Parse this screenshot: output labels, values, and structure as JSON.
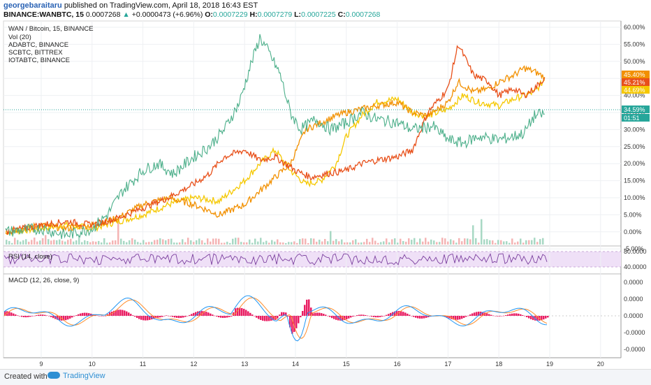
{
  "header": {
    "author": "georgebaraitaru",
    "published": "published on TradingView.com, April 18, 2018 16:43 EST",
    "symbol_line": "BINANCE:WANBTC, 15",
    "price": "0.0007268",
    "arrow": "▲",
    "change": "+0.0000473 (+6.96%)",
    "open_label": "O:",
    "open": "0.0007229",
    "high_label": "H:",
    "high": "0.0007279",
    "low_label": "L:",
    "low": "0.0007225",
    "close_label": "C:",
    "close": "0.0007268"
  },
  "legend": [
    "WAN / Bitcoin, 15, BINANCE",
    "Vol (20)",
    "ADABTC, BINANCE",
    "SCBTC, BITTREX",
    "IOTABTC, BINANCE"
  ],
  "indicators": {
    "rsi": "RSI (14, close)",
    "macd": "MACD (12, 26, close, 9)"
  },
  "footer": {
    "made_with": "Created with",
    "brand": "TradingView"
  },
  "colors": {
    "wan_up": "#4caf8a",
    "wan_down": "#ef8a8a",
    "ada": "#e8501a",
    "sc": "#f29000",
    "iota": "#f5c800",
    "rsi": "#7b3f9e",
    "rsi_band": "#efe0f7",
    "macd": "#2196f3",
    "signal": "#ff8c2a",
    "hist": "#e91e63",
    "current": "#26a69a"
  },
  "chart_data": {
    "type": "line",
    "x_ticks": [
      "9",
      "10",
      "11",
      "12",
      "13",
      "14",
      "15",
      "16",
      "17",
      "18",
      "19",
      "20"
    ],
    "y_ticks": [
      "60.00%",
      "55.00%",
      "50.00%",
      "45.00%",
      "40.00%",
      "35.00%",
      "30.00%",
      "25.00%",
      "20.00%",
      "15.00%",
      "10.00%",
      "5.00%",
      "0.00%",
      "-5.00%"
    ],
    "ylim": [
      -5,
      60
    ],
    "series": [
      {
        "name": "WAN / Bitcoin, 15, BINANCE",
        "x": [
          8.3,
          9,
          9.5,
          10,
          10.3,
          10.6,
          11,
          11.3,
          11.6,
          12,
          12.3,
          12.6,
          12.9,
          13.1,
          13.3,
          13.5,
          13.7,
          13.9,
          14.1,
          14.4,
          14.7,
          15,
          15.3,
          15.6,
          16,
          16.3,
          16.7,
          17,
          17.3,
          17.6,
          18,
          18.3,
          18.5,
          18.7,
          18.9
        ],
        "y": [
          0,
          1,
          -1,
          1,
          5,
          12,
          18,
          20,
          17,
          22,
          25,
          30,
          38,
          48,
          57,
          52,
          46,
          35,
          30,
          33,
          30,
          32,
          35,
          33,
          32,
          30,
          31,
          27,
          26,
          28,
          27,
          28,
          29,
          34,
          34.6
        ]
      },
      {
        "name": "ADABTC, BINANCE",
        "x": [
          8.3,
          9,
          9.5,
          10,
          10.5,
          11,
          11.5,
          12,
          12.3,
          12.6,
          13,
          13.3,
          13.6,
          14,
          14.3,
          14.6,
          15,
          15.3,
          15.6,
          16,
          16.3,
          16.6,
          17,
          17.2,
          17.5,
          17.8,
          18,
          18.3,
          18.5,
          18.7,
          18.9
        ],
        "y": [
          0,
          2,
          3,
          2,
          4,
          7,
          10,
          14,
          17,
          22,
          24,
          21,
          22,
          18,
          16,
          17,
          18,
          20,
          21,
          22,
          24,
          35,
          42,
          55,
          46,
          44,
          40,
          42,
          40,
          42,
          45.2
        ]
      },
      {
        "name": "SCBTC, BITTREX",
        "x": [
          8.3,
          9,
          9.5,
          10,
          10.5,
          11,
          11.5,
          12,
          12.5,
          13,
          13.3,
          13.6,
          13.9,
          14.2,
          14.5,
          14.8,
          15,
          15.3,
          15.6,
          16,
          16.3,
          16.6,
          17,
          17.2,
          17.5,
          17.8,
          18,
          18.3,
          18.5,
          18.7,
          18.9
        ],
        "y": [
          0,
          2,
          1,
          2,
          4,
          8,
          10,
          8,
          5,
          8,
          12,
          16,
          20,
          30,
          32,
          34,
          35,
          36,
          37,
          38,
          35,
          34,
          38,
          44,
          41,
          42,
          44,
          46,
          48,
          47,
          45.4
        ]
      },
      {
        "name": "IOTABTC, BINANCE",
        "x": [
          8.3,
          9,
          9.5,
          10,
          10.5,
          11,
          11.5,
          12,
          12.5,
          13,
          13.3,
          13.6,
          13.9,
          14.2,
          14.5,
          14.8,
          15,
          15.3,
          15.6,
          16,
          16.3,
          16.6,
          17,
          17.3,
          17.6,
          18,
          18.3,
          18.5,
          18.7,
          18.9
        ],
        "y": [
          0,
          1,
          2,
          1,
          3,
          5,
          8,
          10,
          9,
          15,
          20,
          24,
          18,
          14,
          15,
          20,
          28,
          34,
          38,
          39,
          35,
          34,
          36,
          40,
          38,
          37,
          39,
          40,
          41,
          44.7
        ]
      }
    ],
    "price_labels": [
      "45.40%",
      "45.21%",
      "44.69%",
      "34.59%",
      "01:51"
    ],
    "rsi_ticks": [
      "80.0000",
      "40.0000"
    ],
    "macd_ticks": [
      "0.0000",
      "0.0000",
      "0.0000",
      "-0.0000",
      "-0.0000"
    ]
  }
}
